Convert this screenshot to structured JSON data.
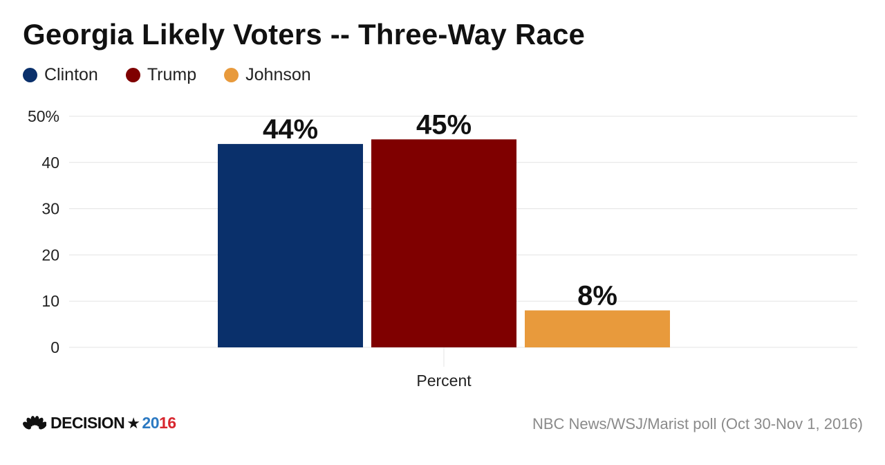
{
  "title": "Georgia Likely Voters -- Three-Way Race",
  "legend": [
    {
      "label": "Clinton",
      "color": "#0a306b"
    },
    {
      "label": "Trump",
      "color": "#7f0000"
    },
    {
      "label": "Johnson",
      "color": "#e89a3c"
    }
  ],
  "chart_data": {
    "type": "bar",
    "title": "Georgia Likely Voters -- Three-Way Race",
    "categories": [
      "Percent"
    ],
    "series": [
      {
        "name": "Clinton",
        "values": [
          44
        ],
        "label": "44%",
        "color": "#0a306b"
      },
      {
        "name": "Trump",
        "values": [
          45
        ],
        "label": "45%",
        "color": "#7f0000"
      },
      {
        "name": "Johnson",
        "values": [
          8
        ],
        "label": "8%",
        "color": "#e89a3c"
      }
    ],
    "ylim": [
      0,
      50
    ],
    "yticks": [
      0,
      10,
      20,
      30,
      40,
      50
    ],
    "ytick_labels": [
      "0",
      "10",
      "20",
      "30",
      "40",
      "50%"
    ],
    "xlabel": "",
    "ylabel": "",
    "grid": true,
    "legend_position": "top-left"
  },
  "footer": {
    "logo_word": "DECISION",
    "logo_star": "★",
    "logo_year_a": "20",
    "logo_year_b": "16",
    "source": "NBC News/WSJ/Marist poll (Oct 30-Nov 1, 2016)"
  },
  "colors": {
    "grid": "#e3e3e3",
    "axis_text": "#222222",
    "peacock": "#111111"
  }
}
